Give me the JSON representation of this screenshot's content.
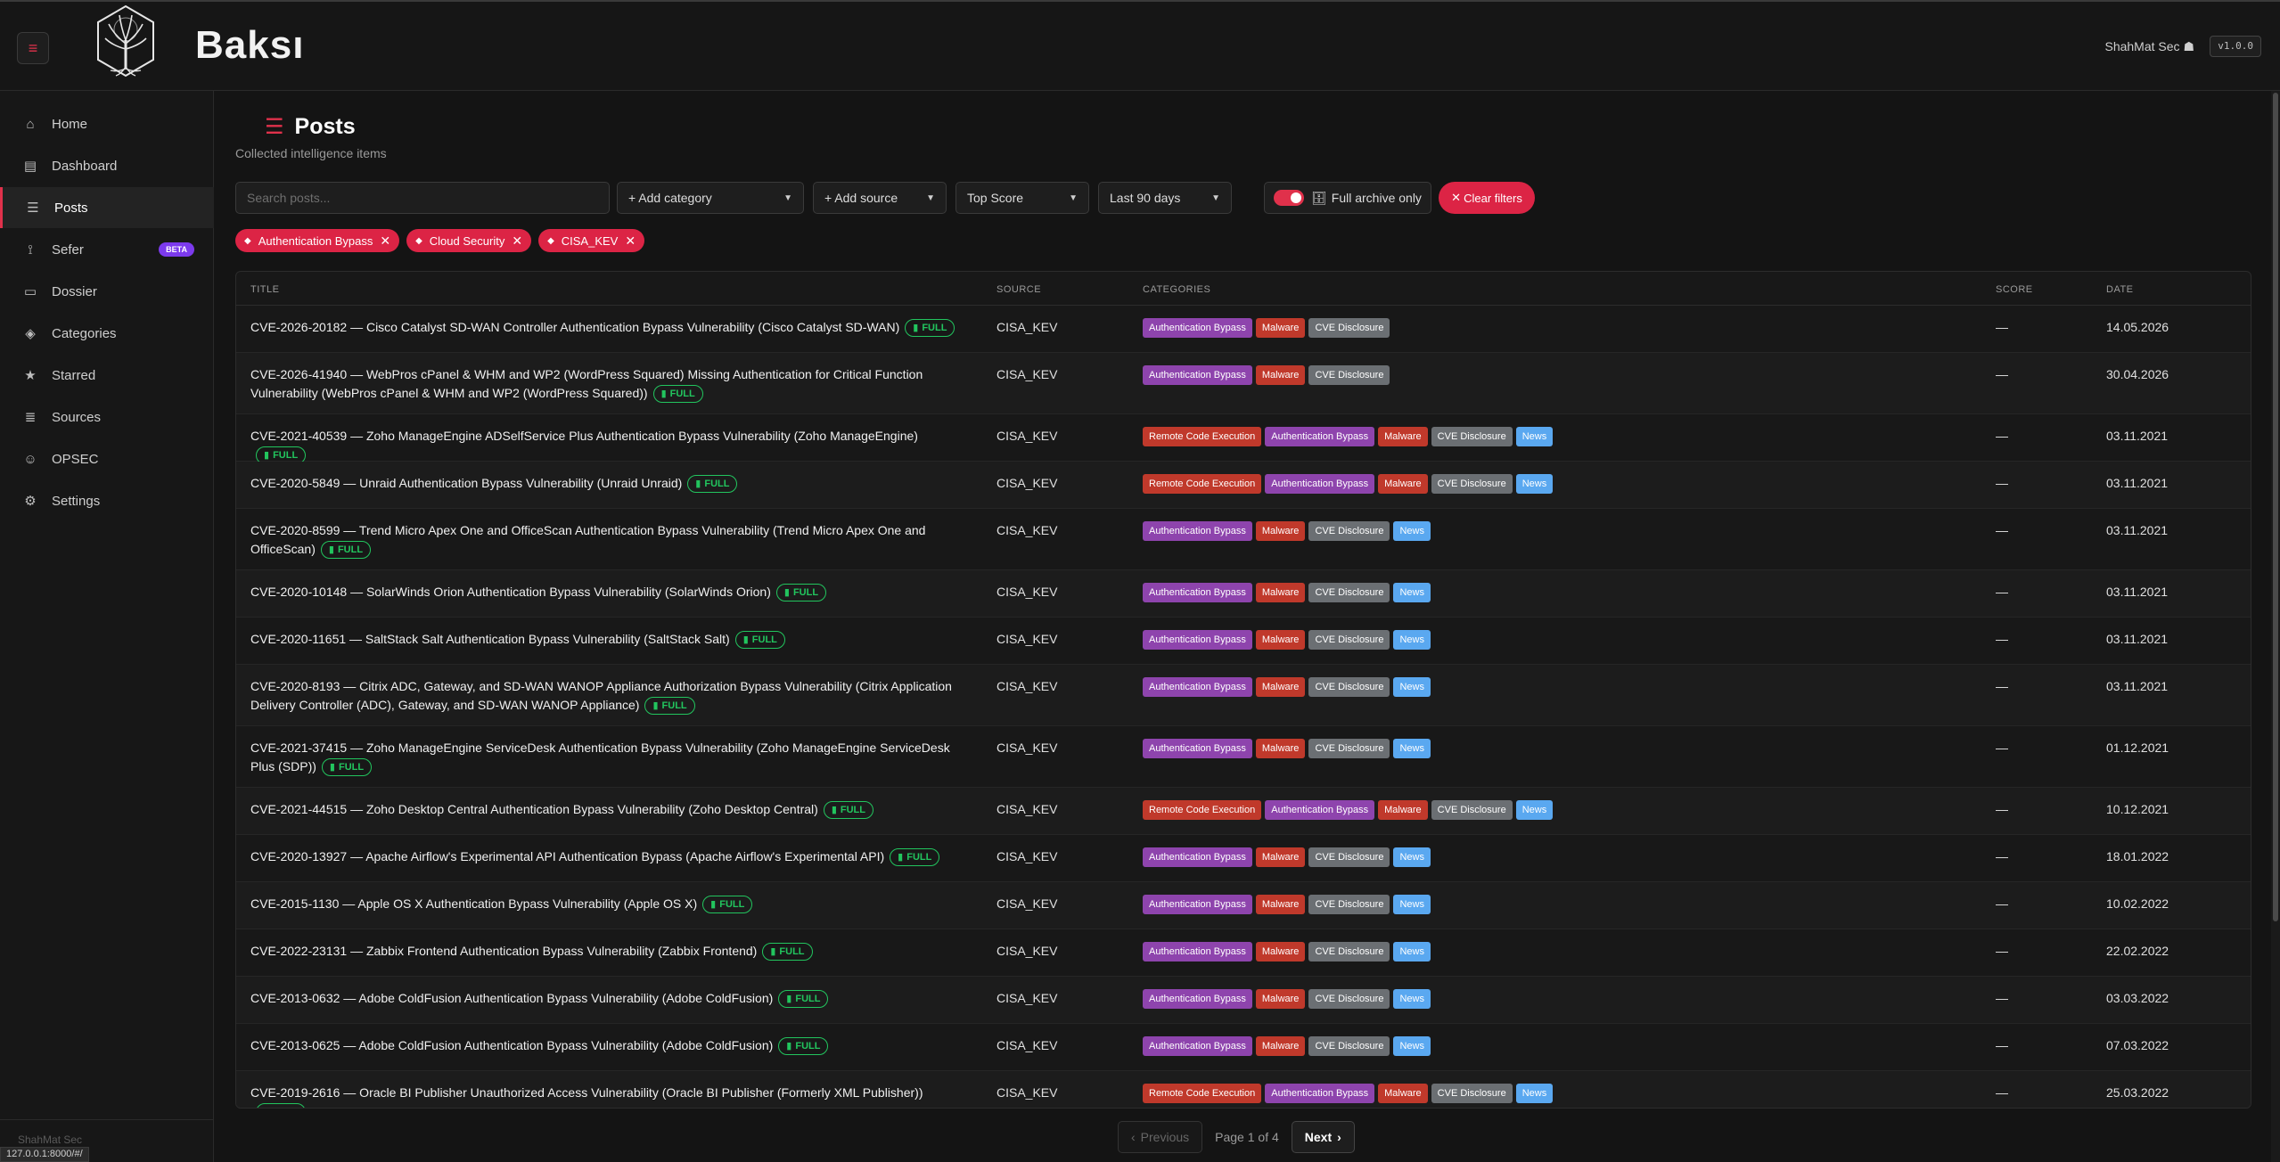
{
  "app": {
    "brand": "Baksı",
    "user": "ShahMat Sec",
    "version": "v1.0.0"
  },
  "sidebar": {
    "items": [
      {
        "label": "Home",
        "icon": "home-icon"
      },
      {
        "label": "Dashboard",
        "icon": "chart-icon"
      },
      {
        "label": "Posts",
        "icon": "list-icon"
      },
      {
        "label": "Sefer",
        "icon": "route-icon",
        "badge": "BETA"
      },
      {
        "label": "Dossier",
        "icon": "folder-icon"
      },
      {
        "label": "Categories",
        "icon": "tag-icon"
      },
      {
        "label": "Starred",
        "icon": "star-icon"
      },
      {
        "label": "Sources",
        "icon": "database-icon"
      },
      {
        "label": "OPSEC",
        "icon": "user-shield-icon"
      },
      {
        "label": "Settings",
        "icon": "gear-icon"
      }
    ],
    "footer_user": "ShahMat Sec",
    "status_url": "127.0.0.1:8000/#/"
  },
  "page": {
    "title": "Posts",
    "subtitle": "Collected intelligence items"
  },
  "filters": {
    "search_placeholder": "Search posts...",
    "category": "+ Add category",
    "source": "+ Add source",
    "sort": "Top Score",
    "range": "Last 90 days",
    "archive_label": "Full archive only",
    "archive_on": true,
    "clear_label": "Clear filters"
  },
  "active_chips": [
    "Authentication Bypass",
    "Cloud Security",
    "CISA_KEV"
  ],
  "table": {
    "headers": {
      "title": "TITLE",
      "source": "SOURCE",
      "categories": "CATEGORIES",
      "score": "SCORE",
      "date": "DATE"
    },
    "full_label": "FULL",
    "rows": [
      {
        "title": "CVE-2026-20182 — Cisco Catalyst SD-WAN Controller Authentication Bypass Vulnerability (Cisco Catalyst SD-WAN)",
        "source": "CISA_KEV",
        "cats": [
          "Authentication Bypass",
          "Malware",
          "CVE Disclosure"
        ],
        "score": "—",
        "date": "14.05.2026"
      },
      {
        "title": "CVE-2026-41940 — WebPros cPanel & WHM and WP2 (WordPress Squared) Missing Authentication for Critical Function Vulnerability (WebPros cPanel & WHM and WP2 (WordPress Squared))",
        "source": "CISA_KEV",
        "cats": [
          "Authentication Bypass",
          "Malware",
          "CVE Disclosure"
        ],
        "score": "—",
        "date": "30.04.2026"
      },
      {
        "title": "CVE-2021-40539 — Zoho ManageEngine ADSelfService Plus Authentication Bypass Vulnerability (Zoho ManageEngine)",
        "source": "CISA_KEV",
        "cats": [
          "Remote Code Execution",
          "Authentication Bypass",
          "Malware",
          "CVE Disclosure",
          "News"
        ],
        "score": "—",
        "date": "03.11.2021"
      },
      {
        "title": "CVE-2020-5849 — Unraid Authentication Bypass Vulnerability (Unraid Unraid)",
        "source": "CISA_KEV",
        "cats": [
          "Remote Code Execution",
          "Authentication Bypass",
          "Malware",
          "CVE Disclosure",
          "News"
        ],
        "score": "—",
        "date": "03.11.2021"
      },
      {
        "title": "CVE-2020-8599 — Trend Micro Apex One and OfficeScan Authentication Bypass Vulnerability (Trend Micro Apex One and OfficeScan)",
        "source": "CISA_KEV",
        "cats": [
          "Authentication Bypass",
          "Malware",
          "CVE Disclosure",
          "News"
        ],
        "score": "—",
        "date": "03.11.2021"
      },
      {
        "title": "CVE-2020-10148 — SolarWinds Orion Authentication Bypass Vulnerability (SolarWinds Orion)",
        "source": "CISA_KEV",
        "cats": [
          "Authentication Bypass",
          "Malware",
          "CVE Disclosure",
          "News"
        ],
        "score": "—",
        "date": "03.11.2021"
      },
      {
        "title": "CVE-2020-11651 — SaltStack Salt Authentication Bypass Vulnerability (SaltStack Salt)",
        "source": "CISA_KEV",
        "cats": [
          "Authentication Bypass",
          "Malware",
          "CVE Disclosure",
          "News"
        ],
        "score": "—",
        "date": "03.11.2021"
      },
      {
        "title": "CVE-2020-8193 — Citrix ADC, Gateway, and SD-WAN WANOP Appliance Authorization Bypass Vulnerability (Citrix Application Delivery Controller (ADC), Gateway, and SD-WAN WANOP Appliance)",
        "source": "CISA_KEV",
        "cats": [
          "Authentication Bypass",
          "Malware",
          "CVE Disclosure",
          "News"
        ],
        "score": "—",
        "date": "03.11.2021"
      },
      {
        "title": "CVE-2021-37415 — Zoho ManageEngine ServiceDesk Authentication Bypass Vulnerability (Zoho ManageEngine ServiceDesk Plus (SDP))",
        "source": "CISA_KEV",
        "cats": [
          "Authentication Bypass",
          "Malware",
          "CVE Disclosure",
          "News"
        ],
        "score": "—",
        "date": "01.12.2021"
      },
      {
        "title": "CVE-2021-44515 — Zoho Desktop Central Authentication Bypass Vulnerability (Zoho Desktop Central)",
        "source": "CISA_KEV",
        "cats": [
          "Remote Code Execution",
          "Authentication Bypass",
          "Malware",
          "CVE Disclosure",
          "News"
        ],
        "score": "—",
        "date": "10.12.2021"
      },
      {
        "title": "CVE-2020-13927 — Apache Airflow's Experimental API Authentication Bypass (Apache Airflow's Experimental API)",
        "source": "CISA_KEV",
        "cats": [
          "Authentication Bypass",
          "Malware",
          "CVE Disclosure",
          "News"
        ],
        "score": "—",
        "date": "18.01.2022"
      },
      {
        "title": "CVE-2015-1130 — Apple OS X Authentication Bypass Vulnerability (Apple OS X)",
        "source": "CISA_KEV",
        "cats": [
          "Authentication Bypass",
          "Malware",
          "CVE Disclosure",
          "News"
        ],
        "score": "—",
        "date": "10.02.2022"
      },
      {
        "title": "CVE-2022-23131 — Zabbix Frontend Authentication Bypass Vulnerability (Zabbix Frontend)",
        "source": "CISA_KEV",
        "cats": [
          "Authentication Bypass",
          "Malware",
          "CVE Disclosure",
          "News"
        ],
        "score": "—",
        "date": "22.02.2022"
      },
      {
        "title": "CVE-2013-0632 — Adobe ColdFusion Authentication Bypass Vulnerability (Adobe ColdFusion)",
        "source": "CISA_KEV",
        "cats": [
          "Authentication Bypass",
          "Malware",
          "CVE Disclosure",
          "News"
        ],
        "score": "—",
        "date": "03.03.2022"
      },
      {
        "title": "CVE-2013-0625 — Adobe ColdFusion Authentication Bypass Vulnerability (Adobe ColdFusion)",
        "source": "CISA_KEV",
        "cats": [
          "Authentication Bypass",
          "Malware",
          "CVE Disclosure",
          "News"
        ],
        "score": "—",
        "date": "07.03.2022"
      },
      {
        "title": "CVE-2019-2616 — Oracle BI Publisher Unauthorized Access Vulnerability (Oracle BI Publisher (Formerly XML Publisher))",
        "source": "CISA_KEV",
        "cats": [
          "Remote Code Execution",
          "Authentication Bypass",
          "Malware",
          "CVE Disclosure",
          "News"
        ],
        "score": "—",
        "date": "25.03.2022"
      }
    ]
  },
  "category_colors": {
    "Authentication Bypass": "#8e44ad",
    "Malware": "#c0392b",
    "CVE Disclosure": "#6b6f73",
    "News": "#5aa8f0",
    "Remote Code Execution": "#c0392b"
  },
  "pagination": {
    "prev": "Previous",
    "info": "Page 1 of 4",
    "next": "Next"
  },
  "accent": "#dc2445"
}
